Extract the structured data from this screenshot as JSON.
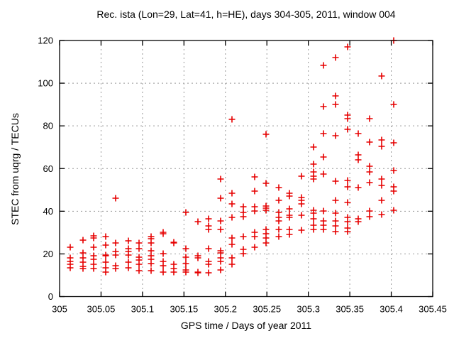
{
  "chart_data": {
    "type": "scatter",
    "title": "Rec. ista (Lon=29, Lat=41, h=HE), days 304-305, 2011, window 004",
    "xlabel": "GPS time / Days of year 2011",
    "ylabel": "STEC from uqrg / TECUs",
    "xlim": [
      305,
      305.45
    ],
    "ylim": [
      0,
      120
    ],
    "x_ticks": [
      305,
      305.05,
      305.1,
      305.15,
      305.2,
      305.25,
      305.3,
      305.35,
      305.4,
      305.45
    ],
    "x_tick_labels": [
      "305",
      "305.05",
      "305.1",
      "305.15",
      "305.2",
      "305.25",
      "305.3",
      "305.35",
      "305.4",
      "305.45"
    ],
    "y_ticks": [
      0,
      20,
      40,
      60,
      80,
      100,
      120
    ],
    "y_tick_labels": [
      "0",
      "20",
      "40",
      "60",
      "80",
      "100",
      "120"
    ],
    "grid": true,
    "legend": "none",
    "marker": {
      "shape": "plus",
      "color": "#e60000",
      "size": 9
    },
    "colors": {
      "background": "#ffffff",
      "border": "#000000",
      "grid": "#999999",
      "text": "#000000"
    },
    "series": [
      {
        "name": "STEC",
        "points": [
          [
            305.013,
            23
          ],
          [
            305.013,
            18
          ],
          [
            305.013,
            16.5
          ],
          [
            305.013,
            15
          ],
          [
            305.013,
            13.5
          ],
          [
            305.028,
            26.5
          ],
          [
            305.028,
            20.5
          ],
          [
            305.028,
            18
          ],
          [
            305.028,
            16
          ],
          [
            305.028,
            14
          ],
          [
            305.028,
            13
          ],
          [
            305.041,
            28.5
          ],
          [
            305.041,
            27.5
          ],
          [
            305.041,
            23
          ],
          [
            305.041,
            19
          ],
          [
            305.041,
            17.5
          ],
          [
            305.041,
            15
          ],
          [
            305.041,
            13
          ],
          [
            305.056,
            28
          ],
          [
            305.056,
            24
          ],
          [
            305.056,
            19.5
          ],
          [
            305.056,
            19
          ],
          [
            305.056,
            16
          ],
          [
            305.056,
            13.5
          ],
          [
            305.056,
            11.5
          ],
          [
            305.068,
            46
          ],
          [
            305.068,
            25
          ],
          [
            305.068,
            21
          ],
          [
            305.068,
            19.5
          ],
          [
            305.068,
            14.5
          ],
          [
            305.068,
            13
          ],
          [
            305.083,
            26
          ],
          [
            305.083,
            22.5
          ],
          [
            305.083,
            21
          ],
          [
            305.083,
            19.5
          ],
          [
            305.083,
            16
          ],
          [
            305.083,
            13.5
          ],
          [
            305.096,
            25
          ],
          [
            305.096,
            22.5
          ],
          [
            305.096,
            18.5
          ],
          [
            305.096,
            17
          ],
          [
            305.096,
            15
          ],
          [
            305.096,
            12
          ],
          [
            305.11,
            28
          ],
          [
            305.11,
            27
          ],
          [
            305.11,
            25
          ],
          [
            305.11,
            21.5
          ],
          [
            305.11,
            19
          ],
          [
            305.11,
            17.5
          ],
          [
            305.11,
            15.5
          ],
          [
            305.11,
            12
          ],
          [
            305.125,
            30
          ],
          [
            305.125,
            29.5
          ],
          [
            305.125,
            20
          ],
          [
            305.125,
            16.5
          ],
          [
            305.125,
            14.5
          ],
          [
            305.125,
            11.5
          ],
          [
            305.138,
            25.5
          ],
          [
            305.138,
            25
          ],
          [
            305.138,
            15
          ],
          [
            305.138,
            13
          ],
          [
            305.138,
            11.5
          ],
          [
            305.152,
            39.5
          ],
          [
            305.152,
            22.5
          ],
          [
            305.152,
            18.5
          ],
          [
            305.152,
            15.5
          ],
          [
            305.152,
            12.5
          ],
          [
            305.152,
            11.5
          ],
          [
            305.167,
            35
          ],
          [
            305.167,
            19
          ],
          [
            305.167,
            18
          ],
          [
            305.167,
            11.5
          ],
          [
            305.167,
            11
          ],
          [
            305.18,
            36.5
          ],
          [
            305.18,
            33
          ],
          [
            305.18,
            31.5
          ],
          [
            305.18,
            22.5
          ],
          [
            305.18,
            16.5
          ],
          [
            305.18,
            15
          ],
          [
            305.18,
            11
          ],
          [
            305.194,
            55
          ],
          [
            305.194,
            46
          ],
          [
            305.194,
            35.5
          ],
          [
            305.194,
            31.5
          ],
          [
            305.194,
            21.5
          ],
          [
            305.194,
            20.5
          ],
          [
            305.194,
            18
          ],
          [
            305.194,
            16.5
          ],
          [
            305.194,
            12.5
          ],
          [
            305.208,
            83
          ],
          [
            305.208,
            48.5
          ],
          [
            305.208,
            43.5
          ],
          [
            305.208,
            37
          ],
          [
            305.208,
            27.5
          ],
          [
            305.208,
            24.5
          ],
          [
            305.208,
            18
          ],
          [
            305.208,
            15
          ],
          [
            305.222,
            42
          ],
          [
            305.222,
            39.5
          ],
          [
            305.222,
            37.5
          ],
          [
            305.222,
            28
          ],
          [
            305.222,
            22
          ],
          [
            305.222,
            20
          ],
          [
            305.235,
            56
          ],
          [
            305.235,
            49.5
          ],
          [
            305.235,
            42
          ],
          [
            305.235,
            40
          ],
          [
            305.235,
            30
          ],
          [
            305.235,
            28
          ],
          [
            305.235,
            23
          ],
          [
            305.249,
            76
          ],
          [
            305.249,
            53
          ],
          [
            305.249,
            42.5
          ],
          [
            305.249,
            41.5
          ],
          [
            305.249,
            40.5
          ],
          [
            305.249,
            31.5
          ],
          [
            305.249,
            29.5
          ],
          [
            305.249,
            27.5
          ],
          [
            305.249,
            25
          ],
          [
            305.264,
            51
          ],
          [
            305.264,
            45
          ],
          [
            305.264,
            39.5
          ],
          [
            305.264,
            37
          ],
          [
            305.264,
            35.5
          ],
          [
            305.264,
            31.5
          ],
          [
            305.264,
            28
          ],
          [
            305.277,
            48.5
          ],
          [
            305.277,
            47
          ],
          [
            305.277,
            41
          ],
          [
            305.277,
            38
          ],
          [
            305.277,
            37
          ],
          [
            305.277,
            31.5
          ],
          [
            305.277,
            29
          ],
          [
            305.292,
            56.5
          ],
          [
            305.292,
            46.5
          ],
          [
            305.292,
            45
          ],
          [
            305.292,
            43.5
          ],
          [
            305.292,
            38
          ],
          [
            305.292,
            31
          ],
          [
            305.306,
            70
          ],
          [
            305.306,
            62
          ],
          [
            305.306,
            58.5
          ],
          [
            305.306,
            56.5
          ],
          [
            305.306,
            55
          ],
          [
            305.306,
            40.5
          ],
          [
            305.306,
            39
          ],
          [
            305.306,
            36.5
          ],
          [
            305.306,
            33.5
          ],
          [
            305.306,
            31.5
          ],
          [
            305.318,
            108.5
          ],
          [
            305.318,
            89
          ],
          [
            305.318,
            76.5
          ],
          [
            305.318,
            65.5
          ],
          [
            305.318,
            57.5
          ],
          [
            305.318,
            40
          ],
          [
            305.318,
            35.5
          ],
          [
            305.318,
            33.5
          ],
          [
            305.318,
            31.5
          ],
          [
            305.333,
            112
          ],
          [
            305.333,
            94
          ],
          [
            305.333,
            90
          ],
          [
            305.333,
            75.5
          ],
          [
            305.333,
            54
          ],
          [
            305.333,
            45
          ],
          [
            305.333,
            39
          ],
          [
            305.333,
            35.5
          ],
          [
            305.333,
            33
          ],
          [
            305.333,
            30.5
          ],
          [
            305.347,
            117
          ],
          [
            305.347,
            85
          ],
          [
            305.347,
            83.5
          ],
          [
            305.347,
            78.5
          ],
          [
            305.347,
            54.5
          ],
          [
            305.347,
            51.5
          ],
          [
            305.347,
            44
          ],
          [
            305.347,
            37
          ],
          [
            305.347,
            35
          ],
          [
            305.347,
            32
          ],
          [
            305.347,
            30.5
          ],
          [
            305.36,
            76.5
          ],
          [
            305.36,
            66.5
          ],
          [
            305.36,
            64
          ],
          [
            305.36,
            51
          ],
          [
            305.36,
            36.5
          ],
          [
            305.36,
            35
          ],
          [
            305.374,
            83.5
          ],
          [
            305.374,
            72.5
          ],
          [
            305.374,
            61
          ],
          [
            305.374,
            58.5
          ],
          [
            305.374,
            53.5
          ],
          [
            305.374,
            40
          ],
          [
            305.374,
            37.5
          ],
          [
            305.388,
            103.5
          ],
          [
            305.388,
            73.5
          ],
          [
            305.388,
            70.5
          ],
          [
            305.388,
            55
          ],
          [
            305.388,
            52
          ],
          [
            305.388,
            45
          ],
          [
            305.388,
            38.5
          ],
          [
            305.403,
            120
          ],
          [
            305.403,
            90
          ],
          [
            305.403,
            72
          ],
          [
            305.403,
            59
          ],
          [
            305.403,
            51.5
          ],
          [
            305.403,
            49.5
          ],
          [
            305.403,
            40.5
          ]
        ]
      }
    ]
  }
}
